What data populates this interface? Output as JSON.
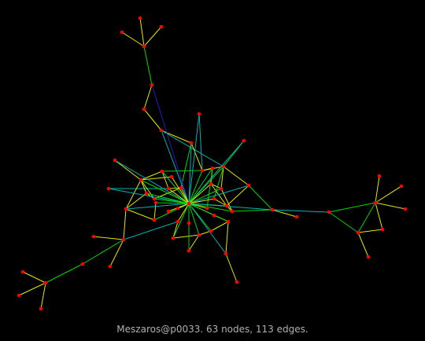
{
  "caption": "Meszaros@p0033. 63 nodes, 113 edges.",
  "colors": {
    "background": "#000000",
    "node": "#ff0000",
    "edge_short": "#e6e600",
    "edge_mid": "#00d800",
    "edge_long": "#00b4b4",
    "edge_longest": "#1e1ec8"
  }
}
